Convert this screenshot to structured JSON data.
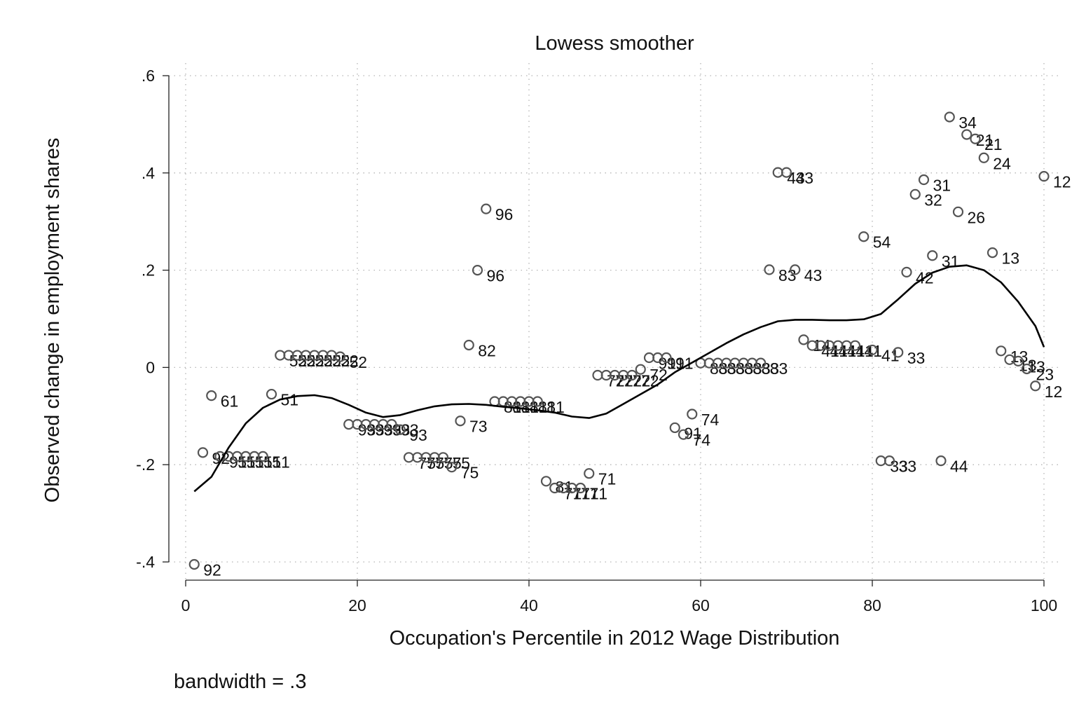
{
  "chart_data": {
    "type": "scatter",
    "title": "Lowess smoother",
    "xlabel": "Occupation's Percentile in 2012 Wage Distribution",
    "ylabel": "Observed change in employment shares",
    "note": "bandwidth = .3",
    "xlim": [
      0,
      100
    ],
    "ylim": [
      -0.4,
      0.6
    ],
    "x_ticks": [
      0,
      20,
      40,
      60,
      80,
      100
    ],
    "x_tick_labels": [
      "0",
      "20",
      "40",
      "60",
      "80",
      "100"
    ],
    "y_ticks": [
      -0.4,
      -0.2,
      0,
      0.2,
      0.4,
      0.6
    ],
    "y_tick_labels": [
      "-.4",
      "-.2",
      "0",
      ".2",
      ".4",
      ".6"
    ],
    "grid": true,
    "colors": {
      "marker": "#555555",
      "line": "#000000",
      "grid": "#b4b4b4",
      "text": "#111111"
    },
    "points": [
      {
        "x": 1,
        "y": -0.405,
        "label": "92"
      },
      {
        "x": 2,
        "y": -0.175,
        "label": "92"
      },
      {
        "x": 3,
        "y": -0.058,
        "label": "61"
      },
      {
        "x": 4,
        "y": -0.183,
        "label": "91"
      },
      {
        "x": 5,
        "y": -0.183,
        "label": "51"
      },
      {
        "x": 6,
        "y": -0.183,
        "label": "51"
      },
      {
        "x": 7,
        "y": -0.183,
        "label": "51"
      },
      {
        "x": 8,
        "y": -0.183,
        "label": "51"
      },
      {
        "x": 9,
        "y": -0.183,
        "label": "51"
      },
      {
        "x": 10,
        "y": -0.055,
        "label": "51"
      },
      {
        "x": 11,
        "y": 0.025,
        "label": "52"
      },
      {
        "x": 12,
        "y": 0.025,
        "label": "52"
      },
      {
        "x": 13,
        "y": 0.025,
        "label": "52"
      },
      {
        "x": 14,
        "y": 0.025,
        "label": "52"
      },
      {
        "x": 15,
        "y": 0.025,
        "label": "52"
      },
      {
        "x": 16,
        "y": 0.025,
        "label": "52"
      },
      {
        "x": 17,
        "y": 0.025,
        "label": "52"
      },
      {
        "x": 18,
        "y": 0.022,
        "label": "52"
      },
      {
        "x": 19,
        "y": -0.117,
        "label": "93"
      },
      {
        "x": 20,
        "y": -0.117,
        "label": "93"
      },
      {
        "x": 21,
        "y": -0.117,
        "label": "93"
      },
      {
        "x": 22,
        "y": -0.117,
        "label": "93"
      },
      {
        "x": 23,
        "y": -0.117,
        "label": "93"
      },
      {
        "x": 24,
        "y": -0.117,
        "label": "93"
      },
      {
        "x": 25,
        "y": -0.128,
        "label": "93"
      },
      {
        "x": 26,
        "y": -0.185,
        "label": "75"
      },
      {
        "x": 27,
        "y": -0.185,
        "label": "75"
      },
      {
        "x": 28,
        "y": -0.185,
        "label": "75"
      },
      {
        "x": 29,
        "y": -0.185,
        "label": "75"
      },
      {
        "x": 30,
        "y": -0.185,
        "label": "75"
      },
      {
        "x": 31,
        "y": -0.205,
        "label": "75"
      },
      {
        "x": 32,
        "y": -0.11,
        "label": "73"
      },
      {
        "x": 33,
        "y": 0.046,
        "label": "82"
      },
      {
        "x": 34,
        "y": 0.2,
        "label": "96"
      },
      {
        "x": 35,
        "y": 0.326,
        "label": "96"
      },
      {
        "x": 36,
        "y": -0.07,
        "label": "81"
      },
      {
        "x": 37,
        "y": -0.07,
        "label": "81"
      },
      {
        "x": 38,
        "y": -0.07,
        "label": "81"
      },
      {
        "x": 39,
        "y": -0.07,
        "label": "81"
      },
      {
        "x": 40,
        "y": -0.07,
        "label": "81"
      },
      {
        "x": 41,
        "y": -0.07,
        "label": "81"
      },
      {
        "x": 42,
        "y": -0.234,
        "label": "81"
      },
      {
        "x": 43,
        "y": -0.248,
        "label": "71"
      },
      {
        "x": 44,
        "y": -0.248,
        "label": "71"
      },
      {
        "x": 45,
        "y": -0.248,
        "label": "71"
      },
      {
        "x": 46,
        "y": -0.248,
        "label": "71"
      },
      {
        "x": 47,
        "y": -0.218,
        "label": "71"
      },
      {
        "x": 48,
        "y": -0.016,
        "label": "72"
      },
      {
        "x": 49,
        "y": -0.016,
        "label": "72"
      },
      {
        "x": 50,
        "y": -0.016,
        "label": "72"
      },
      {
        "x": 51,
        "y": -0.016,
        "label": "72"
      },
      {
        "x": 52,
        "y": -0.016,
        "label": "72"
      },
      {
        "x": 53,
        "y": -0.004,
        "label": "72"
      },
      {
        "x": 54,
        "y": 0.02,
        "label": "91"
      },
      {
        "x": 55,
        "y": 0.02,
        "label": "91"
      },
      {
        "x": 56,
        "y": 0.02,
        "label": "91"
      },
      {
        "x": 57,
        "y": -0.124,
        "label": "91"
      },
      {
        "x": 58,
        "y": -0.138,
        "label": "74"
      },
      {
        "x": 59,
        "y": -0.096,
        "label": "74"
      },
      {
        "x": 60,
        "y": 0.009,
        "label": "83"
      },
      {
        "x": 61,
        "y": 0.009,
        "label": "83"
      },
      {
        "x": 62,
        "y": 0.009,
        "label": "83"
      },
      {
        "x": 63,
        "y": 0.009,
        "label": "83"
      },
      {
        "x": 64,
        "y": 0.009,
        "label": "83"
      },
      {
        "x": 65,
        "y": 0.009,
        "label": "83"
      },
      {
        "x": 66,
        "y": 0.009,
        "label": "83"
      },
      {
        "x": 67,
        "y": 0.009,
        "label": "83"
      },
      {
        "x": 68,
        "y": 0.201,
        "label": "83"
      },
      {
        "x": 69,
        "y": 0.401,
        "label": "43"
      },
      {
        "x": 70,
        "y": 0.401,
        "label": "43"
      },
      {
        "x": 71,
        "y": 0.201,
        "label": "43"
      },
      {
        "x": 72,
        "y": 0.057,
        "label": "14"
      },
      {
        "x": 73,
        "y": 0.045,
        "label": "41"
      },
      {
        "x": 74,
        "y": 0.045,
        "label": "41"
      },
      {
        "x": 75,
        "y": 0.045,
        "label": "41"
      },
      {
        "x": 76,
        "y": 0.045,
        "label": "41"
      },
      {
        "x": 77,
        "y": 0.045,
        "label": "41"
      },
      {
        "x": 78,
        "y": 0.045,
        "label": "41"
      },
      {
        "x": 79,
        "y": 0.269,
        "label": "54"
      },
      {
        "x": 80,
        "y": 0.036,
        "label": "41"
      },
      {
        "x": 81,
        "y": -0.192,
        "label": "33"
      },
      {
        "x": 82,
        "y": -0.192,
        "label": "33"
      },
      {
        "x": 83,
        "y": 0.031,
        "label": "33"
      },
      {
        "x": 84,
        "y": 0.196,
        "label": "42"
      },
      {
        "x": 85,
        "y": 0.356,
        "label": "32"
      },
      {
        "x": 86,
        "y": 0.386,
        "label": "31"
      },
      {
        "x": 87,
        "y": 0.23,
        "label": "31"
      },
      {
        "x": 88,
        "y": -0.192,
        "label": "44"
      },
      {
        "x": 89,
        "y": 0.515,
        "label": "34"
      },
      {
        "x": 90,
        "y": 0.32,
        "label": "26"
      },
      {
        "x": 91,
        "y": 0.479,
        "label": "21"
      },
      {
        "x": 92,
        "y": 0.47,
        "label": "21"
      },
      {
        "x": 93,
        "y": 0.431,
        "label": "24"
      },
      {
        "x": 94,
        "y": 0.236,
        "label": "13"
      },
      {
        "x": 95,
        "y": 0.034,
        "label": "13"
      },
      {
        "x": 96,
        "y": 0.016,
        "label": "13"
      },
      {
        "x": 97,
        "y": 0.013,
        "label": "13"
      },
      {
        "x": 98,
        "y": -0.003,
        "label": "23"
      },
      {
        "x": 99,
        "y": -0.038,
        "label": "12"
      },
      {
        "x": 100,
        "y": 0.393,
        "label": "12"
      }
    ],
    "lowess": {
      "x": [
        1,
        3,
        5,
        7,
        9,
        11,
        13,
        15,
        17,
        19,
        21,
        23,
        25,
        27,
        29,
        31,
        33,
        35,
        37,
        39,
        41,
        43,
        45,
        47,
        49,
        51,
        53,
        55,
        57,
        59,
        61,
        63,
        65,
        67,
        69,
        71,
        73,
        75,
        77,
        79,
        81,
        83,
        85,
        87,
        89,
        91,
        93,
        95,
        97,
        99,
        100
      ],
      "y": [
        -0.255,
        -0.225,
        -0.165,
        -0.115,
        -0.083,
        -0.066,
        -0.059,
        -0.057,
        -0.063,
        -0.077,
        -0.093,
        -0.102,
        -0.098,
        -0.088,
        -0.08,
        -0.076,
        -0.075,
        -0.077,
        -0.081,
        -0.084,
        -0.088,
        -0.093,
        -0.101,
        -0.104,
        -0.095,
        -0.075,
        -0.055,
        -0.035,
        -0.01,
        0.01,
        0.03,
        0.05,
        0.068,
        0.083,
        0.095,
        0.098,
        0.098,
        0.097,
        0.097,
        0.099,
        0.11,
        0.14,
        0.172,
        0.195,
        0.207,
        0.21,
        0.2,
        0.175,
        0.135,
        0.085,
        0.042
      ]
    }
  }
}
